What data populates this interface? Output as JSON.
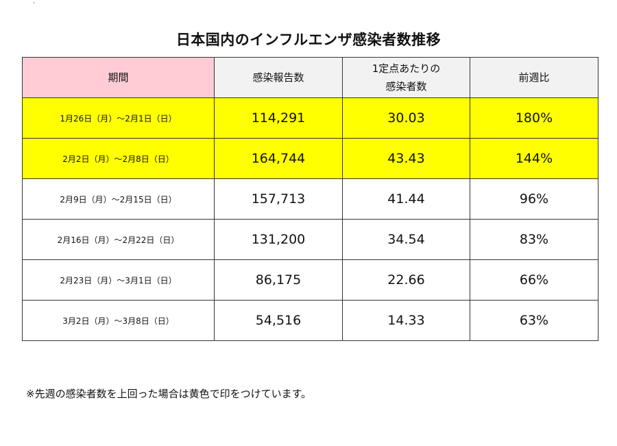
{
  "title": "日本国内のインフルエンザ感染者数推移",
  "table": {
    "headers": {
      "period": "期間",
      "reports": "感染報告数",
      "per_site_line1": "1定点あたりの",
      "per_site_line2": "感染者数",
      "week_ratio": "前週比"
    },
    "rows": [
      {
        "period": "1月26日（月）～2月1日（日）",
        "reports": "114,291",
        "per_site": "30.03",
        "ratio": "180%",
        "highlight": true
      },
      {
        "period": "2月2日（月）～2月8日（日）",
        "reports": "164,744",
        "per_site": "43.43",
        "ratio": "144%",
        "highlight": true
      },
      {
        "period": "2月9日（月）～2月15日（日）",
        "reports": "157,713",
        "per_site": "41.44",
        "ratio": "96%",
        "highlight": false
      },
      {
        "period": "2月16日（月）～2月22日（日）",
        "reports": "131,200",
        "per_site": "34.54",
        "ratio": "83%",
        "highlight": false
      },
      {
        "period": "2月23日（月）～3月1日（日）",
        "reports": "86,175",
        "per_site": "22.66",
        "ratio": "66%",
        "highlight": false
      },
      {
        "period": "3月2日（月）～3月8日（日）",
        "reports": "54,516",
        "per_site": "14.33",
        "ratio": "63%",
        "highlight": false
      }
    ]
  },
  "footnote": "※先週の感染者数を上回った場合は黄色で印をつけています。",
  "colors": {
    "highlight": "#ffff00",
    "period_header": "#ffccd6",
    "header": "#f2f2f2"
  }
}
